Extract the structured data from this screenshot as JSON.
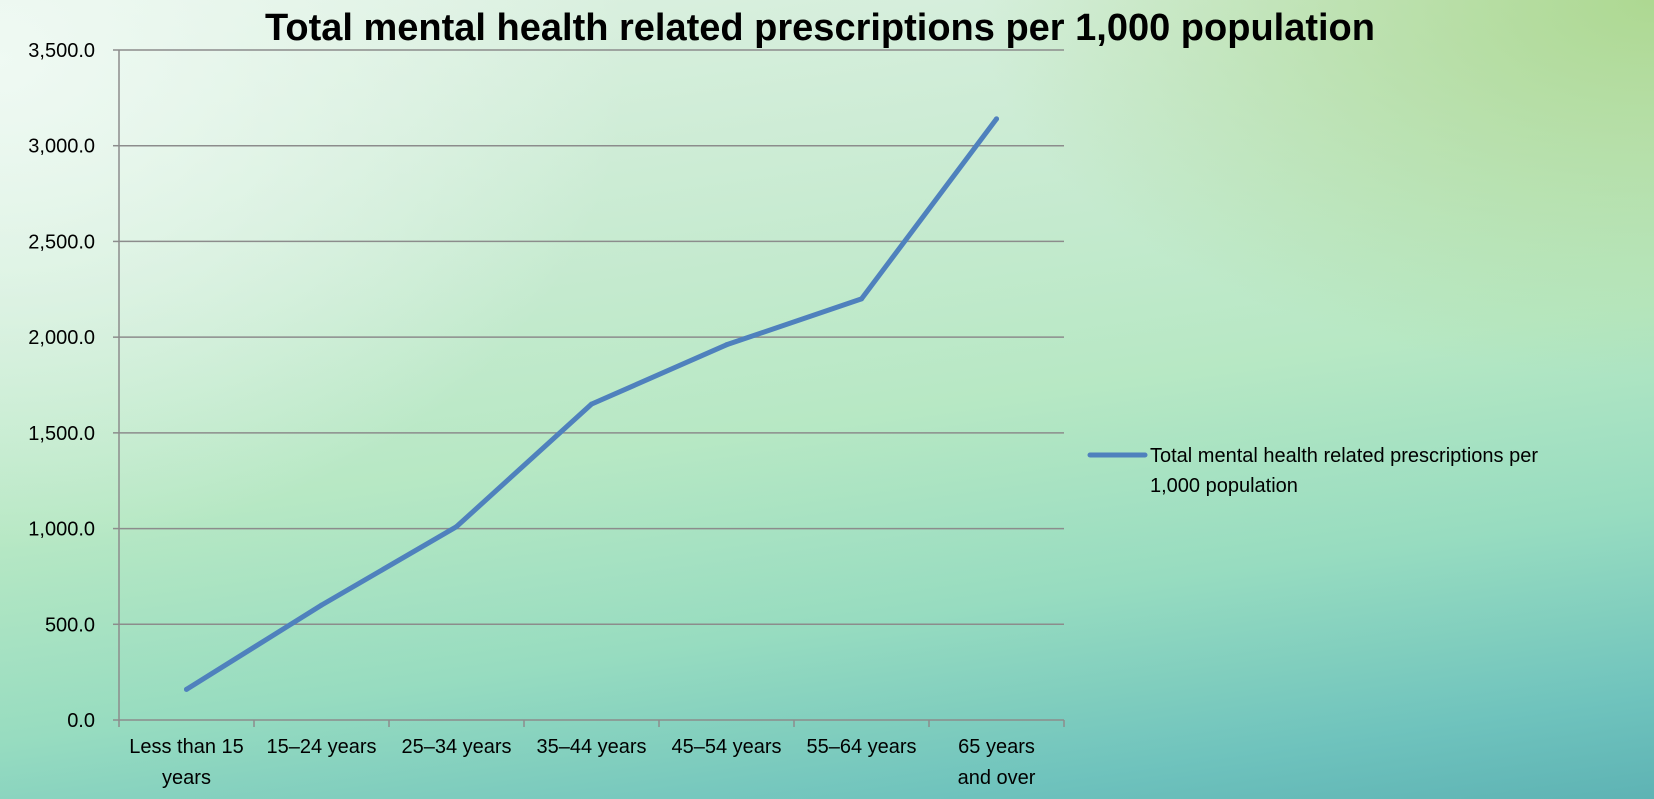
{
  "chart_data": {
    "type": "line",
    "title": "Total mental health related prescriptions per 1,000 population",
    "xlabel": "",
    "ylabel": "",
    "categories": [
      [
        "Less than 15",
        "years"
      ],
      [
        "15–24 years"
      ],
      [
        "25–34 years"
      ],
      [
        "35–44 years"
      ],
      [
        "45–54 years"
      ],
      [
        "55–64 years"
      ],
      [
        "65 years",
        "and over"
      ]
    ],
    "series": [
      {
        "name": "Total mental health related prescriptions per 1,000 population",
        "color": "#4f81bd",
        "values": [
          160,
          600,
          1010,
          1650,
          1960,
          2200,
          3140
        ]
      }
    ],
    "ylim": [
      0,
      3500
    ],
    "yticks": [
      0,
      500,
      1000,
      1500,
      2000,
      2500,
      3000,
      3500
    ],
    "ytick_labels": [
      "0.0",
      "500.0",
      "1,000.0",
      "1,500.0",
      "2,000.0",
      "2,500.0",
      "3,000.0",
      "3,500.0"
    ],
    "grid": true,
    "legend": {
      "position": "right",
      "lines": [
        "Total mental health related prescriptions per",
        "1,000 population"
      ]
    }
  }
}
